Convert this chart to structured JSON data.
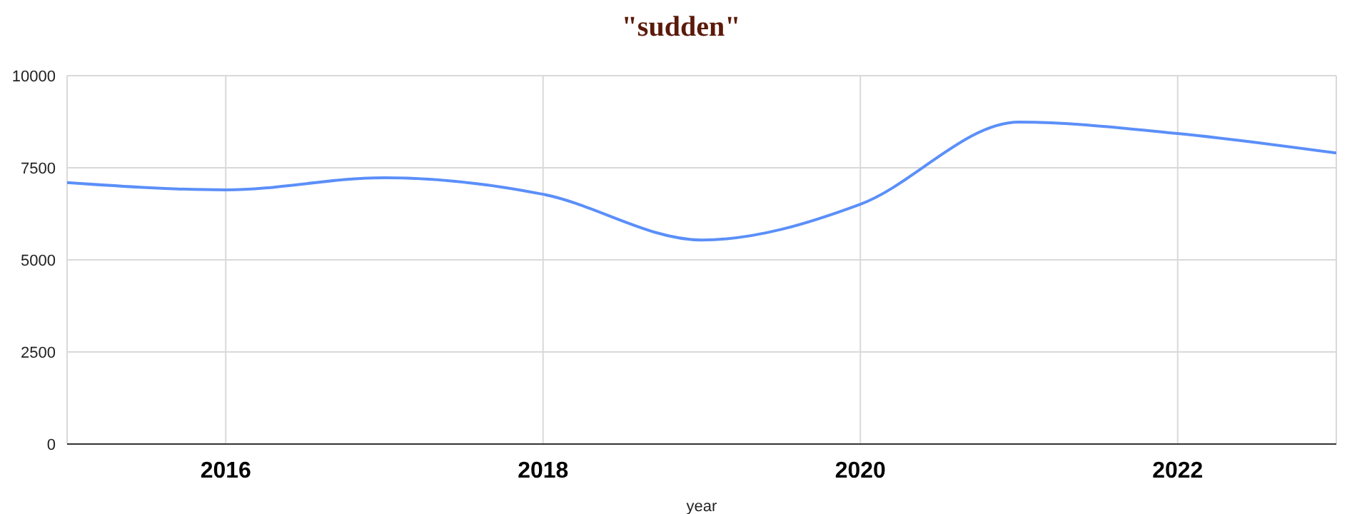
{
  "chart_data": {
    "type": "line",
    "title": "\"sudden\"",
    "xlabel": "year",
    "x": [
      2015,
      2016,
      2017,
      2018,
      2019,
      2020,
      2021,
      2022,
      2023
    ],
    "series": [
      {
        "color": "#5b8ff9",
        "values": [
          7100,
          6900,
          7230,
          6780,
          5540,
          6510,
          8740,
          8430,
          7900
        ]
      }
    ],
    "xlim": [
      2015,
      2023
    ],
    "xticks": [
      2016,
      2018,
      2020,
      2022
    ],
    "ylim": [
      0,
      10000
    ],
    "yticks": [
      0,
      2500,
      5000,
      7500,
      10000
    ],
    "grid": true,
    "marker": "none",
    "line_style": "solid"
  }
}
